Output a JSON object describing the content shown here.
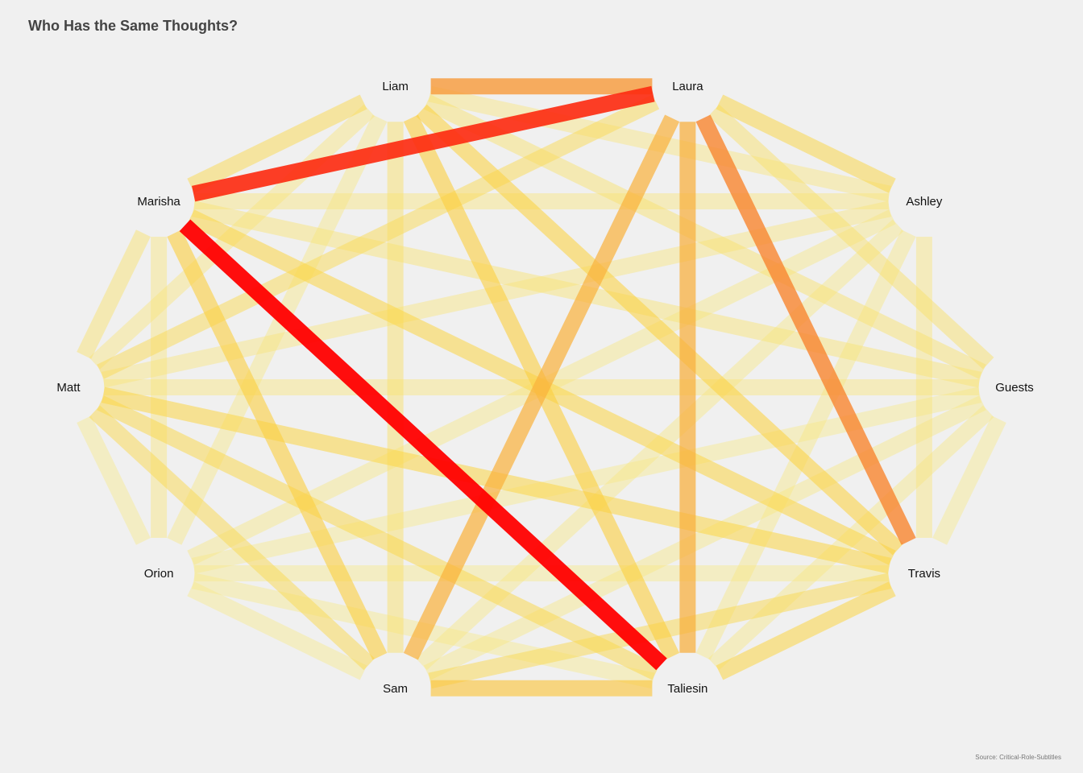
{
  "title": "Who Has the Same Thoughts?",
  "source": "Source: Critical-Role-Subtitles",
  "chart_data": {
    "type": "chord-network",
    "nodes": [
      "Liam",
      "Laura",
      "Ashley",
      "Guests",
      "Travis",
      "Taliesin",
      "Sam",
      "Orion",
      "Matt",
      "Marisha"
    ],
    "color_scale": {
      "low": "#f7ef9a",
      "mid": "#fbd23f",
      "high_a": "#f79a3a",
      "high": "#ff0000"
    },
    "links": [
      {
        "source": "Marisha",
        "target": "Taliesin",
        "value": 1.0
      },
      {
        "source": "Marisha",
        "target": "Laura",
        "value": 0.93
      },
      {
        "source": "Liam",
        "target": "Laura",
        "value": 0.75
      },
      {
        "source": "Laura",
        "target": "Travis",
        "value": 0.78
      },
      {
        "source": "Laura",
        "target": "Taliesin",
        "value": 0.62
      },
      {
        "source": "Laura",
        "target": "Sam",
        "value": 0.6
      },
      {
        "source": "Sam",
        "target": "Taliesin",
        "value": 0.48
      },
      {
        "source": "Liam",
        "target": "Taliesin",
        "value": 0.42
      },
      {
        "source": "Liam",
        "target": "Travis",
        "value": 0.38
      },
      {
        "source": "Marisha",
        "target": "Sam",
        "value": 0.42
      },
      {
        "source": "Marisha",
        "target": "Travis",
        "value": 0.35
      },
      {
        "source": "Matt",
        "target": "Travis",
        "value": 0.35
      },
      {
        "source": "Matt",
        "target": "Taliesin",
        "value": 0.32
      },
      {
        "source": "Matt",
        "target": "Sam",
        "value": 0.3
      },
      {
        "source": "Travis",
        "target": "Taliesin",
        "value": 0.35
      },
      {
        "source": "Travis",
        "target": "Sam",
        "value": 0.3
      },
      {
        "source": "Laura",
        "target": "Ashley",
        "value": 0.33
      },
      {
        "source": "Liam",
        "target": "Marisha",
        "value": 0.3
      },
      {
        "source": "Laura",
        "target": "Matt",
        "value": 0.28
      },
      {
        "source": "Liam",
        "target": "Sam",
        "value": 0.22
      },
      {
        "source": "Liam",
        "target": "Guests",
        "value": 0.2
      },
      {
        "source": "Liam",
        "target": "Ashley",
        "value": 0.15
      },
      {
        "source": "Marisha",
        "target": "Ashley",
        "value": 0.15
      },
      {
        "source": "Marisha",
        "target": "Guests",
        "value": 0.18
      },
      {
        "source": "Marisha",
        "target": "Matt",
        "value": 0.2
      },
      {
        "source": "Marisha",
        "target": "Orion",
        "value": 0.15
      },
      {
        "source": "Laura",
        "target": "Guests",
        "value": 0.22
      },
      {
        "source": "Ashley",
        "target": "Travis",
        "value": 0.15
      },
      {
        "source": "Ashley",
        "target": "Matt",
        "value": 0.15
      },
      {
        "source": "Ashley",
        "target": "Orion",
        "value": 0.12
      },
      {
        "source": "Ashley",
        "target": "Sam",
        "value": 0.12
      },
      {
        "source": "Ashley",
        "target": "Taliesin",
        "value": 0.12
      },
      {
        "source": "Guests",
        "target": "Matt",
        "value": 0.15
      },
      {
        "source": "Guests",
        "target": "Orion",
        "value": 0.1
      },
      {
        "source": "Guests",
        "target": "Sam",
        "value": 0.12
      },
      {
        "source": "Guests",
        "target": "Taliesin",
        "value": 0.12
      },
      {
        "source": "Guests",
        "target": "Travis",
        "value": 0.1
      },
      {
        "source": "Travis",
        "target": "Orion",
        "value": 0.1
      },
      {
        "source": "Taliesin",
        "target": "Orion",
        "value": 0.1
      },
      {
        "source": "Sam",
        "target": "Orion",
        "value": 0.1
      },
      {
        "source": "Matt",
        "target": "Orion",
        "value": 0.1
      },
      {
        "source": "Liam",
        "target": "Matt",
        "value": 0.15
      },
      {
        "source": "Liam",
        "target": "Orion",
        "value": 0.12
      }
    ]
  }
}
